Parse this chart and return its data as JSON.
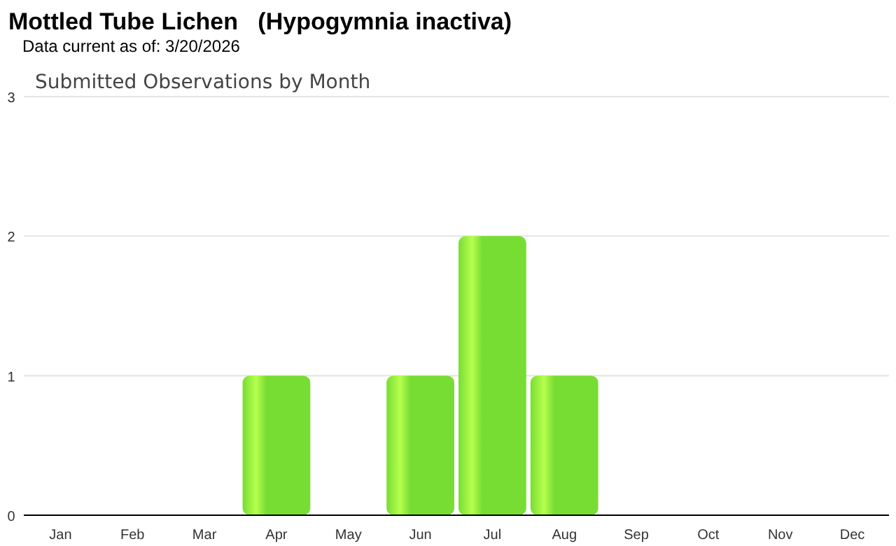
{
  "chart_data": {
    "type": "bar",
    "title": "Mottled Tube Lichen   (Hypogymnia inactiva)",
    "subtitle": "Data current as of: 3/20/2026",
    "annotations": [
      "Submitted Observations by Month"
    ],
    "categories": [
      "Jan",
      "Feb",
      "Mar",
      "Apr",
      "May",
      "Jun",
      "Jul",
      "Aug",
      "Sep",
      "Oct",
      "Nov",
      "Dec"
    ],
    "values": [
      0,
      0,
      0,
      1,
      0,
      1,
      2,
      1,
      0,
      0,
      0,
      0
    ],
    "color": "#77dd33",
    "ylim": [
      0,
      3
    ],
    "yticks": [
      0,
      1,
      2,
      3
    ],
    "grid": "y"
  }
}
